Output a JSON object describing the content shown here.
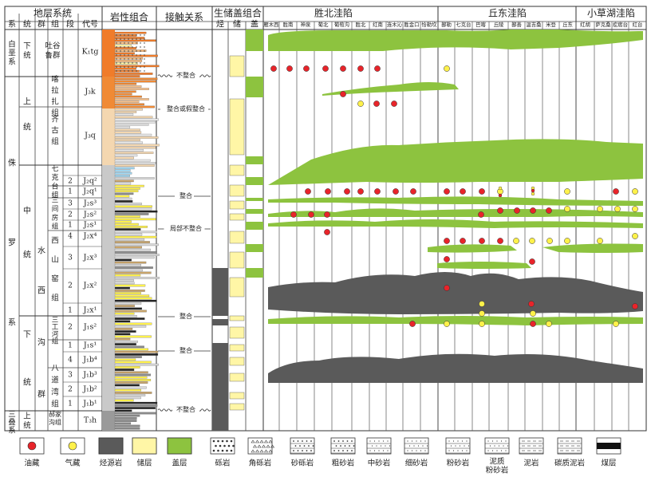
{
  "headers": {
    "strata_system": "地层系统",
    "lithology": "岩性组合",
    "contact": "接触关系",
    "sgc": "生储盖组合",
    "shengbei": "胜北洼陷",
    "qiudong": "丘东洼陷",
    "xiaocaohu": "小草湖洼陷"
  },
  "sub_headers": {
    "xi": "系",
    "tong": "统",
    "qun": "群",
    "zu": "组",
    "duan": "段",
    "daihao": "代号",
    "sheng": "烃",
    "chu": "储",
    "gai": "盖"
  },
  "wells": {
    "shengbei": [
      "雁木西",
      "胜南",
      "神泉",
      "葡北",
      "葡萄沟",
      "胜北",
      "红南",
      "连木沁",
      "胜金口",
      "恰勒坎"
    ],
    "qiudong": [
      "鄯勒",
      "七克台",
      "巴喀",
      "丘陵",
      "鄯善",
      "温吉桑",
      "米登",
      "丘东"
    ],
    "xiaocaohu": [
      "红胡",
      "萨克桑",
      "疙瘩台",
      "红台"
    ]
  },
  "systems": [
    "白垩系",
    "侏罗系",
    "三叠系"
  ],
  "series": [
    "下统",
    "上统",
    "中统",
    "下统",
    "上统"
  ],
  "groups": [
    "吐谷鲁群",
    "水西沟群",
    "八道湾组"
  ],
  "formations": [
    "喀拉扎组",
    "齐古组",
    "七克台组",
    "三间房组",
    "西山窑组",
    "三工河组",
    "八道湾组",
    "郝家沟组"
  ],
  "codes": [
    "K₁tg",
    "J₃k",
    "J₃q",
    "J₂q²",
    "J₂q¹",
    "J₂s³",
    "J₂s²",
    "J₂s¹",
    "J₂x⁴",
    "J₂x³",
    "J₂x²",
    "J₂x¹",
    "J₁s²",
    "J₁s¹",
    "J₁b⁴",
    "J₁b³",
    "J₁b²",
    "J₁b¹",
    "T₃h"
  ],
  "contacts": [
    "不整合",
    "整合或假整合",
    "整合",
    "局部不整合",
    "整合",
    "整合",
    "不整合"
  ],
  "legend": [
    {
      "label": "油藏",
      "icon": "oil-reservoir-icon"
    },
    {
      "label": "气藏",
      "icon": "gas-reservoir-icon"
    },
    {
      "label": "烃源岩",
      "icon": "source-rock-icon"
    },
    {
      "label": "储层",
      "icon": "reservoir-icon"
    },
    {
      "label": "盖层",
      "icon": "cap-rock-icon"
    },
    {
      "label": "砾岩",
      "icon": "conglomerate-icon"
    },
    {
      "label": "角砾岩",
      "icon": "breccia-icon"
    },
    {
      "label": "砂砾岩",
      "icon": "sandy-conglomerate-icon"
    },
    {
      "label": "粗砂岩",
      "icon": "coarse-sandstone-icon"
    },
    {
      "label": "中砂岩",
      "icon": "medium-sandstone-icon"
    },
    {
      "label": "细砂岩",
      "icon": "fine-sandstone-icon"
    },
    {
      "label": "粉砂岩",
      "icon": "siltstone-icon"
    },
    {
      "label": "泥质粉砂岩",
      "icon": "argillaceous-siltstone-icon"
    },
    {
      "label": "泥岩",
      "icon": "mudstone-icon"
    },
    {
      "label": "碳质泥岩",
      "icon": "carbonaceous-mudstone-icon"
    },
    {
      "label": "煤层",
      "icon": "coal-icon"
    }
  ],
  "colors": {
    "oil": "#e8242a",
    "gas": "#fff14a",
    "source": "#5a5a5a",
    "reservoir": "#fff6a6",
    "cap": "#8dc33f",
    "cretaceous": "#f07c2a",
    "upper_jurassic": "#f08a35",
    "lightblue": "#9fd5ef",
    "lilac": "#e8c7df",
    "brown": "#b7863f"
  }
}
